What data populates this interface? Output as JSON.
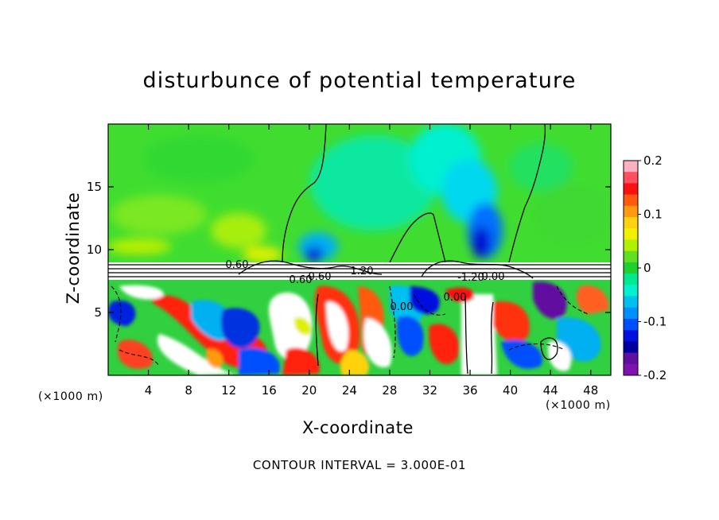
{
  "chart_data": {
    "type": "heatmap",
    "title": "disturbunce of potential temperature",
    "xlabel": "X-coordinate",
    "ylabel": "Z-coordinate",
    "x_unit_left": "(×1000 m)",
    "x_unit_right": "(×1000 m)",
    "annotation": "CONTOUR INTERVAL = 3.000E-01",
    "xlim": [
      0,
      50
    ],
    "ylim": [
      0,
      20
    ],
    "x_ticks": [
      4,
      8,
      12,
      16,
      20,
      24,
      28,
      32,
      36,
      40,
      44,
      48
    ],
    "y_ticks": [
      5,
      10,
      15
    ],
    "colorbar": {
      "range": [
        -0.2,
        0.2
      ],
      "ticks": [
        "0.2",
        "0.1",
        "0",
        "-0.1",
        "-0.2"
      ],
      "colors": [
        "#ffb0c0",
        "#ff5060",
        "#ff1010",
        "#ff5a10",
        "#ff9a10",
        "#ffd210",
        "#f0f000",
        "#b0f000",
        "#60e020",
        "#20d030",
        "#00e890",
        "#00f0d0",
        "#00c0f0",
        "#0090ff",
        "#0050ff",
        "#0010e0",
        "#0000a0",
        "#6010a0",
        "#8010b0"
      ]
    },
    "contour_labels": [
      "0.60",
      "0.60",
      "0.60",
      "-1.20",
      "0.00",
      "0.00",
      "0.00",
      "1.20"
    ]
  }
}
